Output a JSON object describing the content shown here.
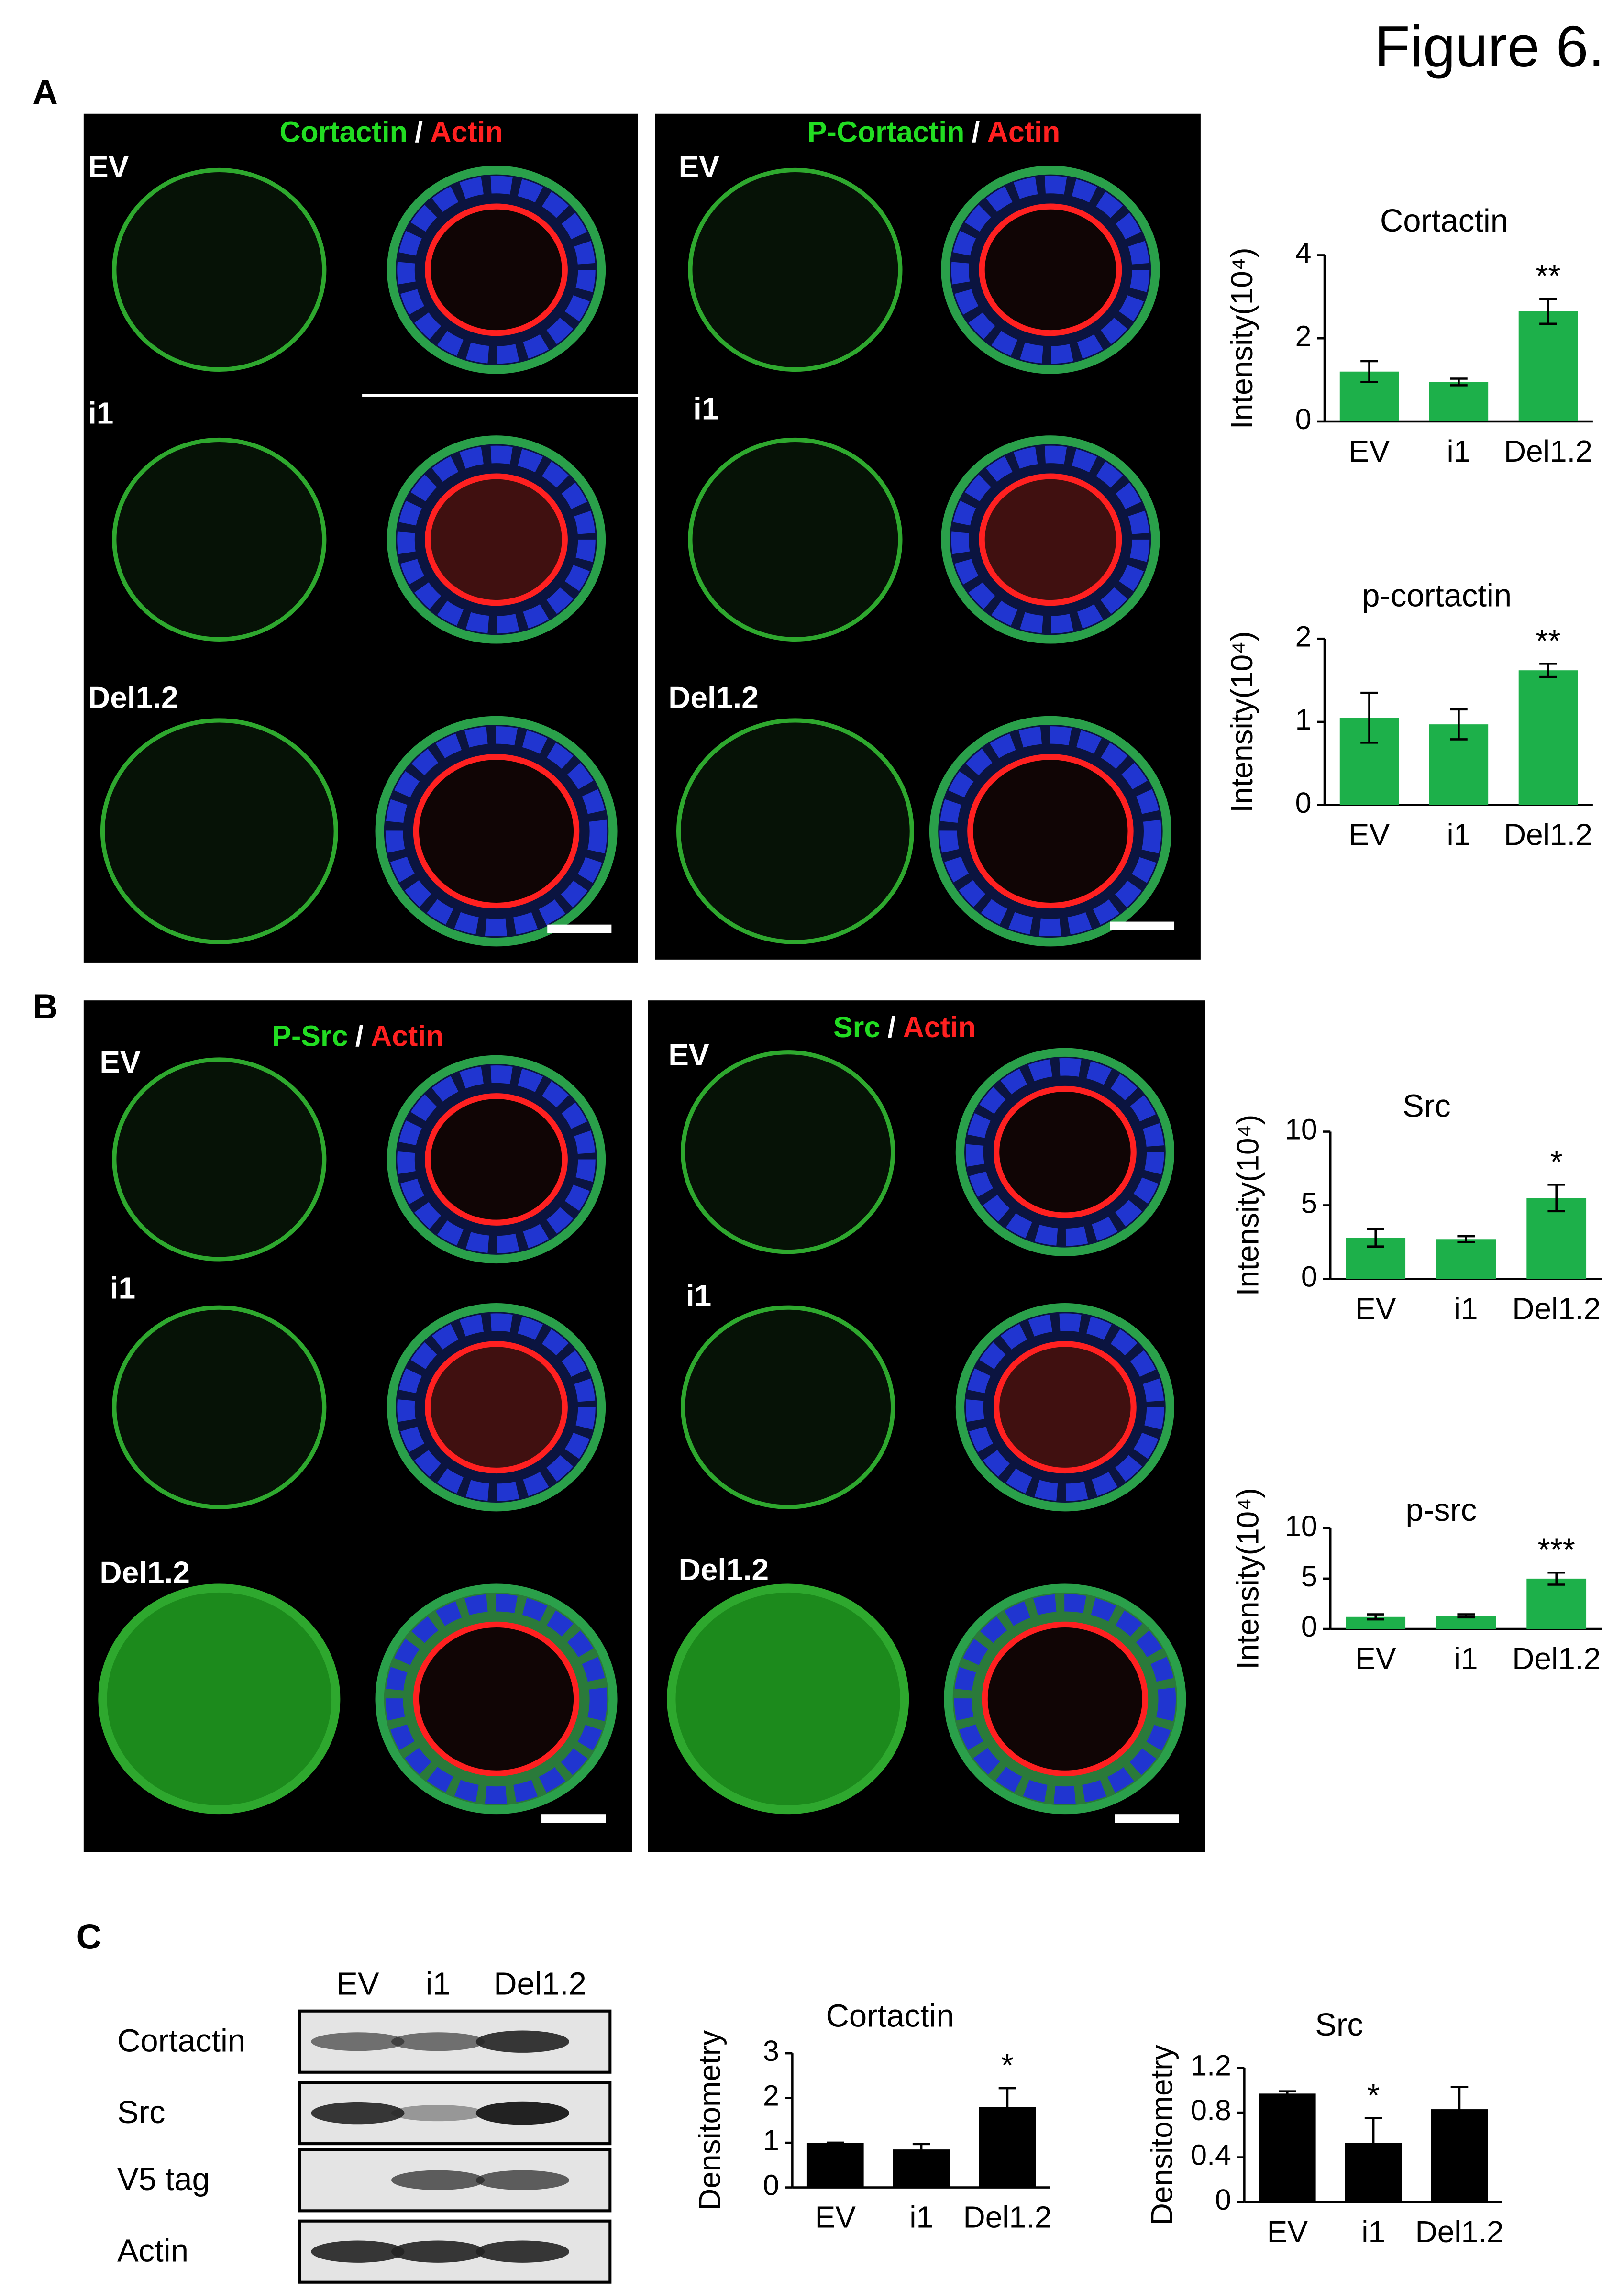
{
  "figure": {
    "title": "Figure 6.",
    "panel_labels": [
      "A",
      "B",
      "C"
    ],
    "panels": [
      {
        "stain": "Cortactin",
        "sep": "/",
        "counter": "Actin",
        "rows": [
          "EV",
          "i1",
          "Del1.2"
        ]
      },
      {
        "stain": "P-Cortactin",
        "sep": "/",
        "counter": "Actin",
        "rows": [
          "EV",
          "i1",
          "Del1.2"
        ]
      },
      {
        "stain": "P-Src",
        "sep": "/",
        "counter": "Actin",
        "rows": [
          "EV",
          "i1",
          "Del1.2"
        ]
      },
      {
        "stain": "Src",
        "sep": "/",
        "counter": "Actin",
        "rows": [
          "EV",
          "i1",
          "Del1.2"
        ]
      }
    ],
    "blot": {
      "lanes": [
        "EV",
        "i1",
        "Del1.2"
      ],
      "rows": [
        "Cortactin",
        "Src",
        "V5 tag",
        "Actin"
      ]
    }
  },
  "chart_data": [
    {
      "type": "bar",
      "title": "Cortactin",
      "y_label": "Intensity(10⁴)",
      "categories": [
        "EV",
        "i1",
        "Del1.2"
      ],
      "values": [
        1.2,
        0.95,
        2.65
      ],
      "errors": [
        0.25,
        0.08,
        0.3
      ],
      "significance": [
        null,
        null,
        "**"
      ],
      "color": "#1db04a",
      "ylim": [
        0,
        4
      ],
      "yticks": [
        0,
        2,
        4
      ]
    },
    {
      "type": "bar",
      "title": "p-cortactin",
      "y_label": "Intensity(10⁴)",
      "categories": [
        "EV",
        "i1",
        "Del1.2"
      ],
      "values": [
        1.05,
        0.97,
        1.62
      ],
      "errors": [
        0.3,
        0.18,
        0.08
      ],
      "significance": [
        null,
        null,
        "**"
      ],
      "color": "#1db04a",
      "ylim": [
        0,
        2
      ],
      "yticks": [
        0,
        1,
        2
      ]
    },
    {
      "type": "bar",
      "title": "Src",
      "y_label": "Intensity(10⁴)",
      "categories": [
        "EV",
        "i1",
        "Del1.2"
      ],
      "values": [
        2.8,
        2.7,
        5.5
      ],
      "errors": [
        0.6,
        0.2,
        0.9
      ],
      "significance": [
        null,
        null,
        "*"
      ],
      "color": "#1db04a",
      "ylim": [
        0,
        10
      ],
      "yticks": [
        0,
        5,
        10
      ]
    },
    {
      "type": "bar",
      "title": "p-src",
      "y_label": "Intensity(10⁴)",
      "categories": [
        "EV",
        "i1",
        "Del1.2"
      ],
      "values": [
        1.2,
        1.3,
        5.0
      ],
      "errors": [
        0.25,
        0.15,
        0.6
      ],
      "significance": [
        null,
        null,
        "***"
      ],
      "color": "#1db04a",
      "ylim": [
        0,
        10
      ],
      "yticks": [
        0,
        5,
        10
      ]
    },
    {
      "type": "bar",
      "title": "Cortactin",
      "y_label": "Densitometry",
      "categories": [
        "EV",
        "i1",
        "Del1.2"
      ],
      "values": [
        1.0,
        0.85,
        1.8
      ],
      "errors": [
        0,
        0.12,
        0.42
      ],
      "significance": [
        null,
        null,
        "*"
      ],
      "color": "#000000",
      "ylim": [
        0,
        3
      ],
      "yticks": [
        0,
        1,
        2,
        3
      ]
    },
    {
      "type": "bar",
      "title": "Src",
      "y_label": "Densitometry",
      "categories": [
        "EV",
        "i1",
        "Del1.2"
      ],
      "values": [
        0.97,
        0.53,
        0.83
      ],
      "errors": [
        0.02,
        0.22,
        0.2
      ],
      "significance": [
        null,
        "*",
        null
      ],
      "color": "#000000",
      "ylim": [
        0,
        1.2
      ],
      "yticks": [
        0,
        0.4,
        0.8,
        1.2
      ]
    }
  ]
}
